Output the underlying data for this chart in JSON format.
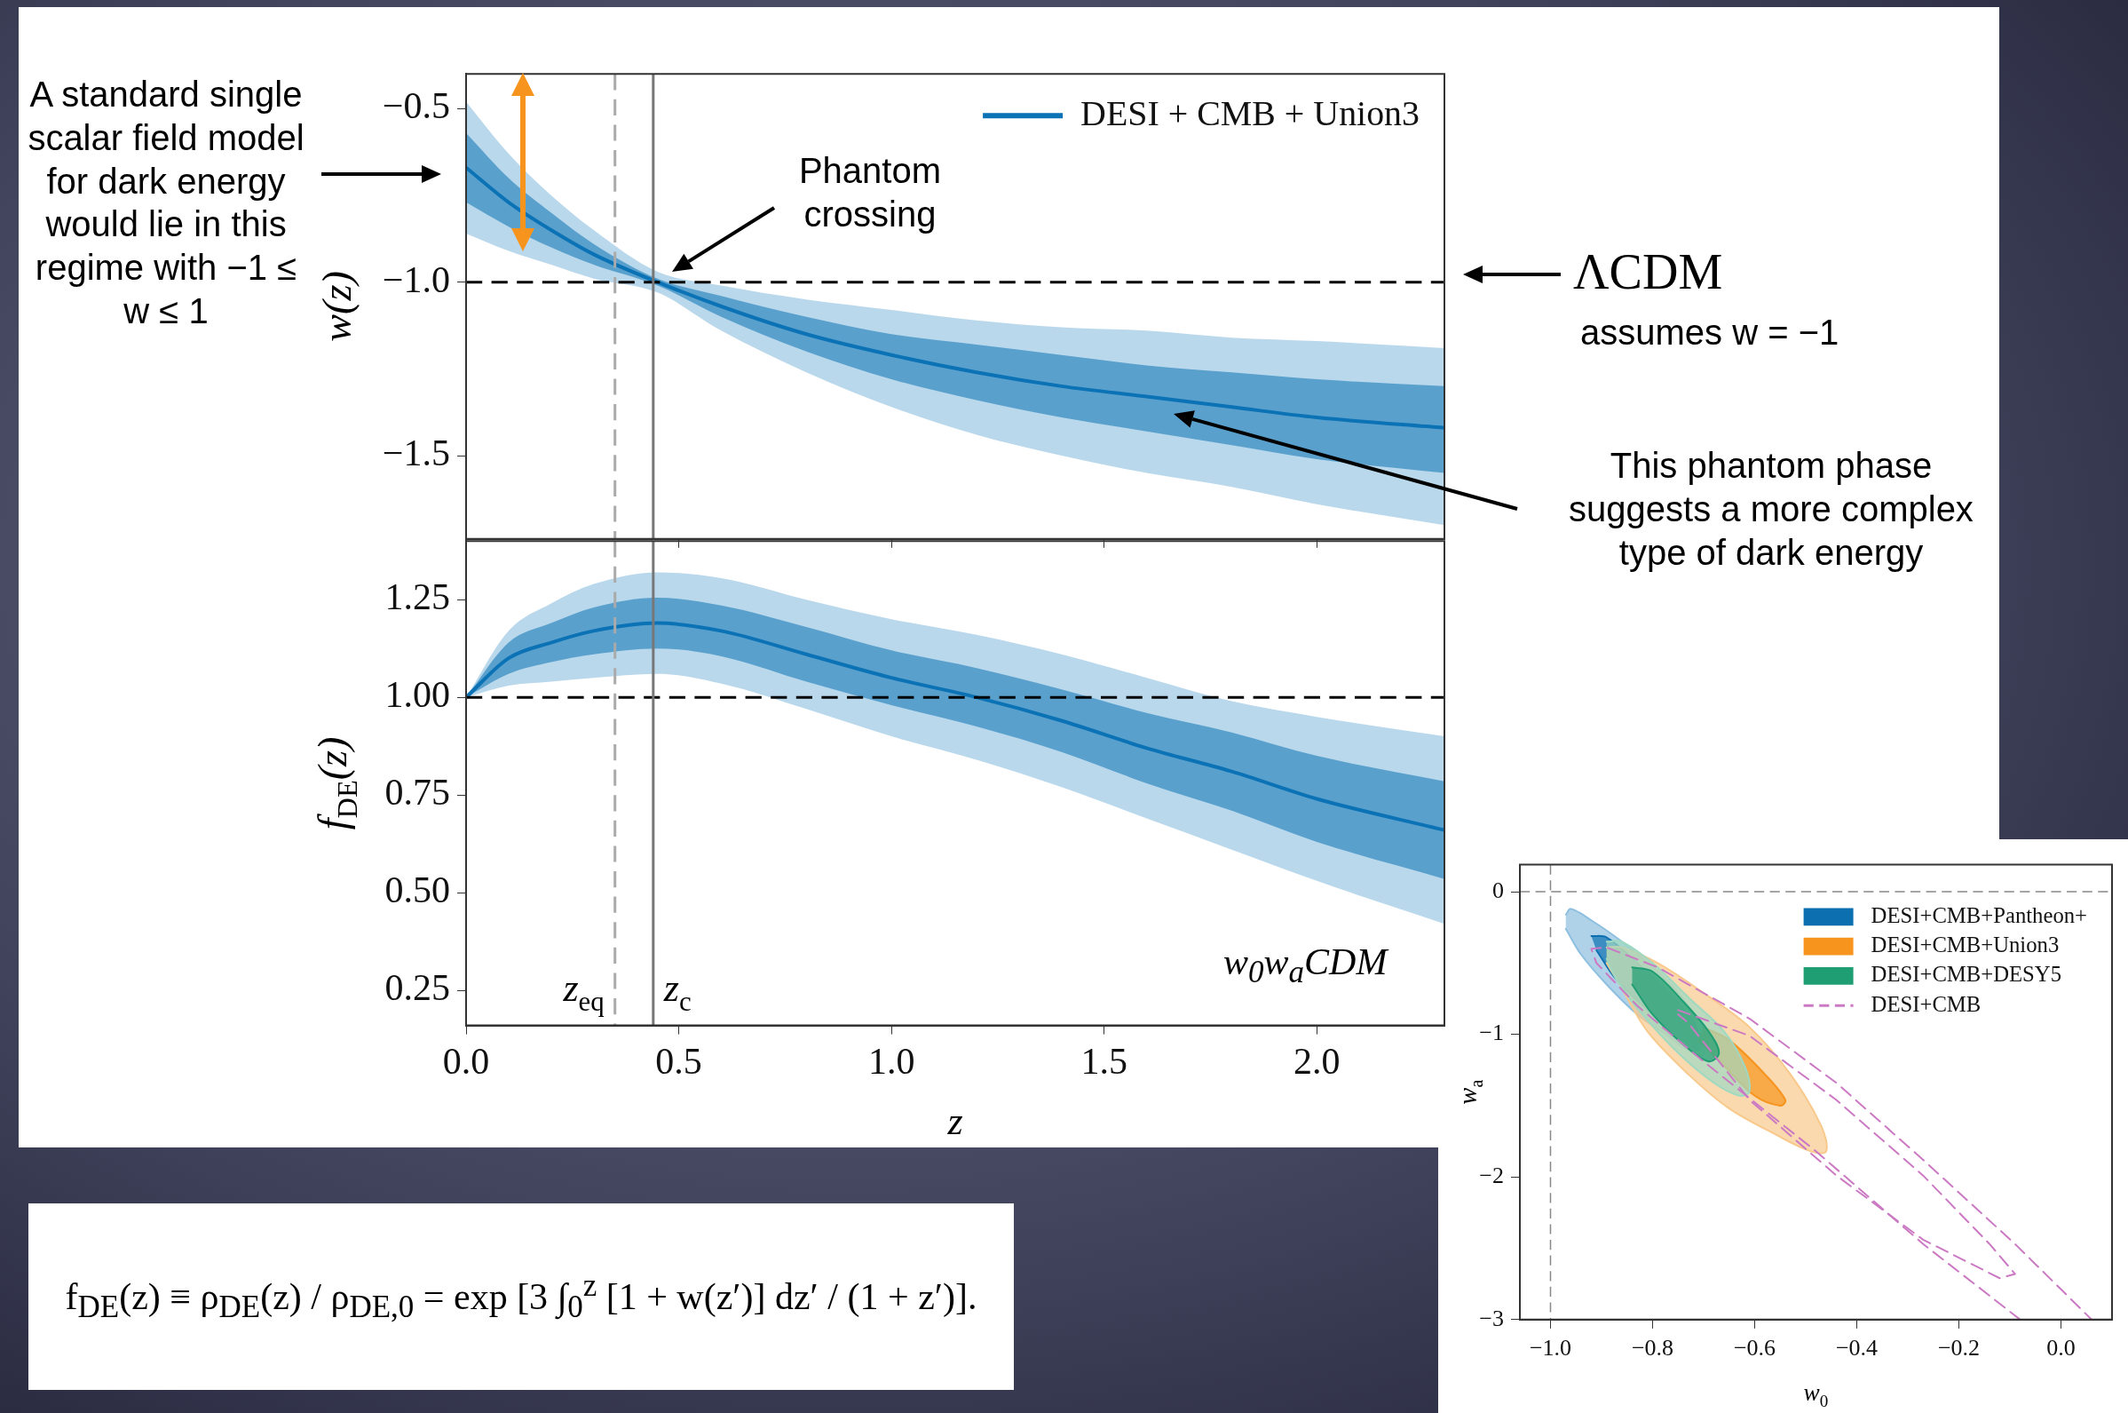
{
  "chart_data": [
    {
      "type": "line",
      "ylabel": "w(z)",
      "x": [
        0,
        0.1,
        0.2,
        0.3,
        0.45,
        0.6,
        0.8,
        1.0,
        1.2,
        1.4,
        1.6,
        1.8,
        2.0,
        2.3
      ],
      "xlim": [
        0,
        2.3
      ],
      "xticks": [
        {
          "value": 0,
          "label": null
        },
        {
          "value": 0.5,
          "label": null
        },
        {
          "value": 1,
          "label": null
        },
        {
          "value": 1.5,
          "label": null
        },
        {
          "value": 2,
          "label": null
        }
      ],
      "ylim": [
        -1.74,
        -0.4
      ],
      "yticks": [
        {
          "value": -1.5,
          "label": "−1.5"
        },
        {
          "value": -1,
          "label": "−1.0"
        },
        {
          "value": -0.5,
          "label": "−0.5"
        }
      ],
      "tick_labels": "y",
      "legend": "top right",
      "series": [
        {
          "type": "line",
          "color": "#7fb8dc",
          "values": [
            null,
            null,
            null,
            null,
            null,
            null,
            null,
            null,
            null,
            null,
            null,
            null,
            null,
            null
          ],
          "lower": [
            -0.86,
            -0.91,
            -0.95,
            -0.99,
            -1.03,
            -1.14,
            -1.26,
            -1.36,
            -1.44,
            -1.5,
            -1.55,
            -1.59,
            -1.64,
            -1.7
          ],
          "upper": [
            -0.48,
            -0.63,
            -0.75,
            -0.85,
            -0.97,
            -1.01,
            -1.05,
            -1.08,
            -1.11,
            -1.13,
            -1.14,
            -1.16,
            -1.17,
            -1.19
          ]
        },
        {
          "type": "line",
          "name": "DESI + CMB + Union3",
          "color": "#0b72b5",
          "values": [
            -0.67,
            -0.77,
            -0.85,
            -0.92,
            -1.0,
            -1.07,
            -1.15,
            -1.21,
            -1.26,
            -1.3,
            -1.33,
            -1.36,
            -1.39,
            -1.42
          ],
          "lower": [
            -0.77,
            -0.84,
            -0.9,
            -0.95,
            -1.01,
            -1.1,
            -1.2,
            -1.28,
            -1.34,
            -1.39,
            -1.43,
            -1.47,
            -1.51,
            -1.55
          ],
          "upper": [
            -0.57,
            -0.7,
            -0.8,
            -0.89,
            -0.99,
            -1.04,
            -1.1,
            -1.15,
            -1.18,
            -1.21,
            -1.24,
            -1.26,
            -1.28,
            -1.3
          ]
        }
      ],
      "ref_lines": [
        {
          "axis": "y",
          "value": -1,
          "label": null,
          "color": "#000000",
          "line_style": "dashed"
        },
        {
          "axis": "x",
          "value": 0.35,
          "label": null,
          "color": "#aaaaaa",
          "line_style": "dashed"
        },
        {
          "axis": "x",
          "value": 0.44,
          "label": null,
          "color": "#777777",
          "line_style": "solid"
        }
      ],
      "annotations": [
        "A standard single scalar field model for dark energy would lie in this regime with −1 ≤ w ≤ 1",
        "Phantom crossing",
        "ΛCDM",
        "assumes w = −1",
        "This phantom phase suggests a more complex type of dark energy"
      ]
    },
    {
      "type": "line",
      "xlabel": "z",
      "ylabel": "f$_{DE}$(z)",
      "x": [
        0,
        0.1,
        0.2,
        0.3,
        0.45,
        0.6,
        0.8,
        1.0,
        1.2,
        1.4,
        1.6,
        1.8,
        2.0,
        2.3
      ],
      "xlim": [
        0,
        2.3
      ],
      "xticks": [
        {
          "value": 0,
          "label": "0.0"
        },
        {
          "value": 0.5,
          "label": "0.5"
        },
        {
          "value": 1,
          "label": "1.0"
        },
        {
          "value": 1.5,
          "label": "1.5"
        },
        {
          "value": 2,
          "label": "2.0"
        }
      ],
      "ylim": [
        0.16,
        1.4
      ],
      "yticks": [
        {
          "value": 0.25,
          "label": "0.25"
        },
        {
          "value": 0.5,
          "label": "0.50"
        },
        {
          "value": 0.75,
          "label": "0.75"
        },
        {
          "value": 1,
          "label": "1.00"
        },
        {
          "value": 1.25,
          "label": "1.25"
        }
      ],
      "series": [
        {
          "type": "line",
          "color": "#7fb8dc",
          "values": [
            null,
            null,
            null,
            null,
            null,
            null,
            null,
            null,
            null,
            null,
            null,
            null,
            null,
            null
          ],
          "lower": [
            1.0,
            1.03,
            1.04,
            1.05,
            1.06,
            1.035,
            0.97,
            0.9,
            0.84,
            0.77,
            0.69,
            0.61,
            0.53,
            0.42
          ],
          "upper": [
            1.0,
            1.17,
            1.24,
            1.29,
            1.32,
            1.305,
            1.25,
            1.2,
            1.16,
            1.11,
            1.05,
            0.99,
            0.95,
            0.9
          ]
        },
        {
          "type": "line",
          "color": "#0b72b5",
          "values": [
            1.0,
            1.1,
            1.14,
            1.17,
            1.19,
            1.17,
            1.11,
            1.05,
            1.0,
            0.94,
            0.87,
            0.81,
            0.74,
            0.66
          ],
          "lower": [
            1.0,
            1.06,
            1.09,
            1.11,
            1.125,
            1.105,
            1.04,
            0.98,
            0.925,
            0.86,
            0.78,
            0.71,
            0.63,
            0.535
          ],
          "upper": [
            1.0,
            1.14,
            1.19,
            1.23,
            1.255,
            1.235,
            1.18,
            1.12,
            1.075,
            1.02,
            0.96,
            0.91,
            0.85,
            0.785
          ]
        }
      ],
      "ref_lines": [
        {
          "axis": "y",
          "value": 1,
          "label": null,
          "color": "#000000",
          "line_style": "dashed"
        },
        {
          "axis": "x",
          "value": 0.35,
          "label": "z$_{eq}$",
          "color": "#aaaaaa",
          "line_style": "dashed"
        },
        {
          "axis": "x",
          "value": 0.44,
          "label": "z$_{c}$",
          "color": "#777777",
          "line_style": "solid"
        }
      ],
      "annotations": [
        "w$_{0}$w$_{a}$CDM"
      ]
    },
    {
      "type": "line",
      "xlabel": "w$_{0}$",
      "ylabel": "w$_{a}$",
      "xlim": [
        -1.06,
        0.1
      ],
      "xticks": [
        {
          "value": -1,
          "label": "−1.0"
        },
        {
          "value": -0.8,
          "label": "−0.8"
        },
        {
          "value": -0.6,
          "label": "−0.6"
        },
        {
          "value": -0.4,
          "label": "−0.4"
        },
        {
          "value": -0.2,
          "label": "−0.2"
        },
        {
          "value": 0,
          "label": "0.0"
        }
      ],
      "ylim": [
        -3,
        0.19
      ],
      "yticks": [
        {
          "value": -3,
          "label": "−3"
        },
        {
          "value": -2,
          "label": "−2"
        },
        {
          "value": -1,
          "label": "−1"
        },
        {
          "value": 0,
          "label": "0"
        }
      ],
      "legend": "top right",
      "series": [
        {
          "type": "area",
          "color": "#8dbfe0",
          "x": [
            -0.97,
            -0.96,
            -0.92,
            -0.86,
            -0.79,
            -0.73,
            -0.71,
            -0.7,
            -0.73,
            -0.77,
            -0.83,
            -0.89,
            -0.94,
            -0.97
          ],
          "values": [
            -0.16,
            -0.12,
            -0.2,
            -0.35,
            -0.56,
            -0.8,
            -1.01,
            -1.14,
            -1.11,
            -1.01,
            -0.86,
            -0.65,
            -0.44,
            -0.26
          ]
        },
        {
          "type": "area",
          "name": "DESI+CMB+Pantheon+",
          "color": "#0b6fb0",
          "x": [
            -0.92,
            -0.89,
            -0.83,
            -0.76,
            -0.71,
            -0.71,
            -0.73,
            -0.8,
            -0.87,
            -0.91
          ],
          "values": [
            -0.31,
            -0.32,
            -0.5,
            -0.74,
            -0.98,
            -1.11,
            -1.07,
            -0.86,
            -0.62,
            -0.41
          ]
        },
        {
          "type": "area",
          "color": "#f8c98b",
          "x": [
            -0.89,
            -0.86,
            -0.79,
            -0.7,
            -0.61,
            -0.53,
            -0.47,
            -0.46,
            -0.49,
            -0.56,
            -0.65,
            -0.73,
            -0.81,
            -0.86,
            -0.89
          ],
          "values": [
            -0.39,
            -0.39,
            -0.5,
            -0.71,
            -0.95,
            -1.28,
            -1.64,
            -1.82,
            -1.82,
            -1.7,
            -1.52,
            -1.28,
            -0.98,
            -0.68,
            -0.5
          ]
        },
        {
          "type": "area",
          "name": "DESI+CMB+Union3",
          "color": "#f7941d",
          "x": [
            -0.7,
            -0.65,
            -0.58,
            -0.54,
            -0.55,
            -0.6,
            -0.66,
            -0.71
          ],
          "values": [
            -0.95,
            -1.04,
            -1.28,
            -1.46,
            -1.5,
            -1.43,
            -1.22,
            -1.04
          ]
        },
        {
          "type": "area",
          "color": "#9fd9c2",
          "x": [
            -0.89,
            -0.86,
            -0.8,
            -0.73,
            -0.66,
            -0.62,
            -0.61,
            -0.63,
            -0.68,
            -0.75,
            -0.82,
            -0.87,
            -0.89
          ],
          "values": [
            -0.35,
            -0.35,
            -0.5,
            -0.74,
            -0.98,
            -1.22,
            -1.4,
            -1.43,
            -1.34,
            -1.13,
            -0.86,
            -0.62,
            -0.47
          ]
        },
        {
          "type": "area",
          "name": "DESI+CMB+DESY5",
          "color": "#1f9e74",
          "x": [
            -0.84,
            -0.8,
            -0.74,
            -0.69,
            -0.67,
            -0.69,
            -0.74,
            -0.8,
            -0.84
          ],
          "values": [
            -0.53,
            -0.56,
            -0.77,
            -0.98,
            -1.13,
            -1.19,
            -1.07,
            -0.86,
            -0.65
          ]
        },
        {
          "type": "line",
          "name": "DESI+CMB",
          "color": "#cc79c4",
          "line_style": "dashed",
          "x": [
            -0.08,
            -0.27,
            -0.48,
            -0.7,
            -0.83,
            -0.91,
            -0.92,
            -0.89,
            -0.79,
            -0.61,
            -0.44,
            -0.27,
            -0.09,
            0.06
          ],
          "values": [
            -3.0,
            -2.47,
            -1.82,
            -1.19,
            -0.8,
            -0.5,
            -0.4,
            -0.39,
            -0.53,
            -0.89,
            -1.34,
            -1.88,
            -2.47,
            -3.0
          ]
        },
        {
          "type": "line",
          "color": "#cc79c4",
          "line_style": "dashed",
          "x": [
            -0.75,
            -0.61,
            -0.44,
            -0.27,
            -0.14,
            -0.09,
            -0.12,
            -0.27,
            -0.44,
            -0.61,
            -0.73,
            -0.75
          ],
          "values": [
            -0.83,
            -1.01,
            -1.46,
            -1.99,
            -2.47,
            -2.68,
            -2.71,
            -2.44,
            -1.99,
            -1.46,
            -0.92,
            -0.86
          ]
        }
      ],
      "ref_lines": [
        {
          "axis": "x",
          "value": -1,
          "label": null,
          "color": "#888888",
          "line_style": "dashed"
        },
        {
          "axis": "y",
          "value": 0,
          "label": null,
          "color": "#888888",
          "line_style": "dashed"
        }
      ]
    },
    {
      "type": "other",
      "annotations": [
        "f$_{DE}$(z) ≡ ρ$_{DE}$(z) / ρ$_{DE,0}$ = exp [3 ∫$_{0}$$^{z}$ [1 + w(z′)] dz′ / (1 + z′)]."
      ]
    }
  ]
}
